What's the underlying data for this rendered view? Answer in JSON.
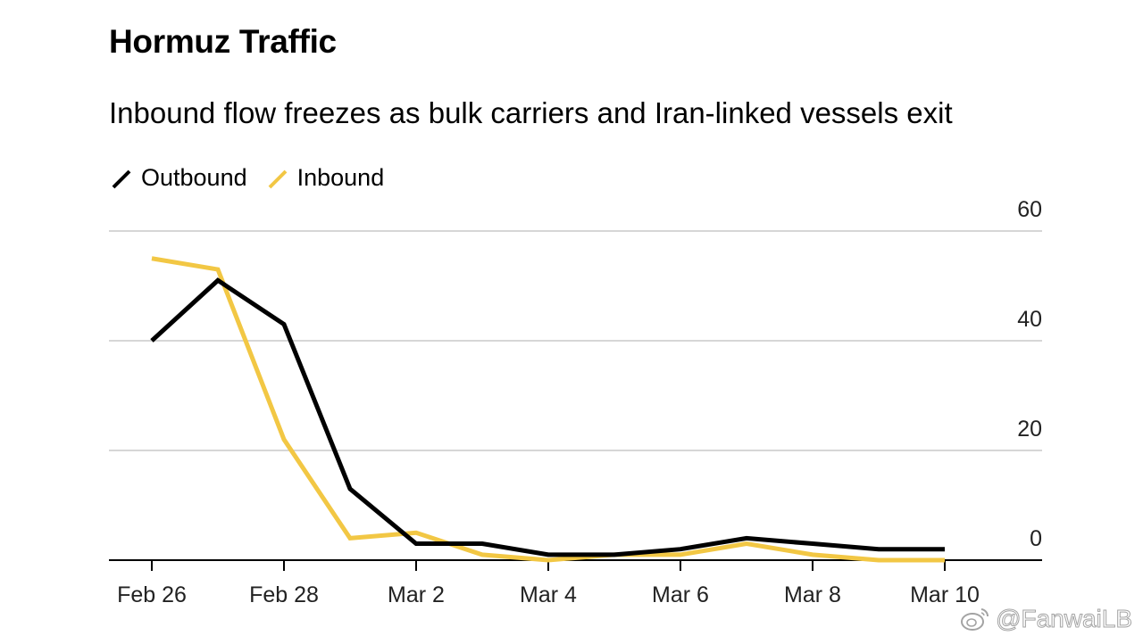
{
  "chart_data": {
    "type": "line",
    "title": "Hormuz Traffic",
    "subtitle": "Inbound flow freezes as bulk carriers and Iran-linked vessels exit",
    "xlabel": "",
    "ylabel": "",
    "x_tick_labels": [
      "Feb 26",
      "Feb 28",
      "Mar 2",
      "Mar 4",
      "Mar 6",
      "Mar 8",
      "Mar 10"
    ],
    "y_tick_labels": [
      "0",
      "20",
      "40",
      "60"
    ],
    "y_ticks": [
      0,
      20,
      40,
      60
    ],
    "ylim": [
      0,
      60
    ],
    "y_axis_side": "right",
    "grid": true,
    "legend_position": "top-left",
    "categories": [
      "Feb 26",
      "Feb 27",
      "Feb 28",
      "Mar 1",
      "Mar 2",
      "Mar 3",
      "Mar 4",
      "Mar 5",
      "Mar 6",
      "Mar 7",
      "Mar 8",
      "Mar 9",
      "Mar 10"
    ],
    "series": [
      {
        "name": "Outbound",
        "color": "#000000",
        "values": [
          40,
          51,
          43,
          13,
          3,
          3,
          1,
          1,
          2,
          4,
          3,
          2,
          2
        ]
      },
      {
        "name": "Inbound",
        "color": "#F2C744",
        "values": [
          55,
          53,
          22,
          4,
          5,
          1,
          0,
          1,
          1,
          3,
          1,
          0,
          0
        ]
      }
    ]
  },
  "legend": {
    "outbound_label": "Outbound",
    "inbound_label": "Inbound",
    "outbound_color": "#000000",
    "inbound_color": "#F2C744"
  },
  "watermark": {
    "text": "@FanwaiLB",
    "logo_icon": "weibo-logo-icon"
  }
}
